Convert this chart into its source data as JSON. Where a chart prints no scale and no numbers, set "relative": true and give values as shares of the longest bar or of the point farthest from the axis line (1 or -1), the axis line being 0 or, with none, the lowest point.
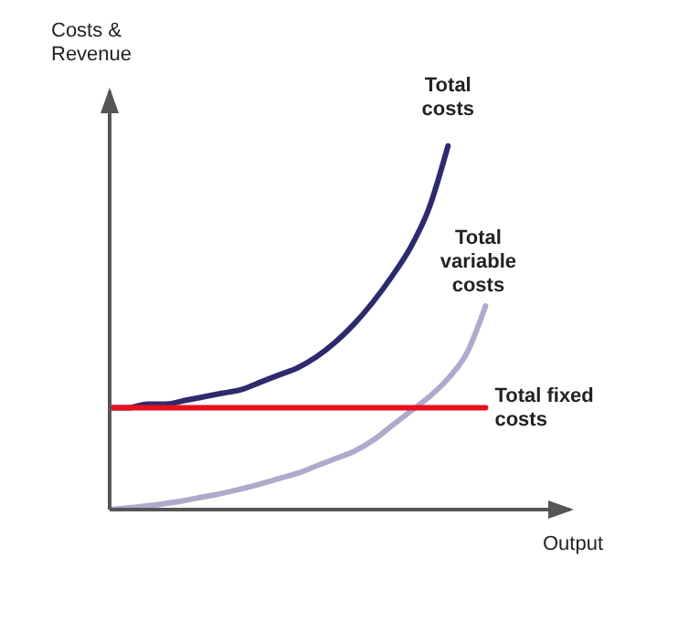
{
  "chart_data": {
    "type": "line",
    "relative": true,
    "xlabel": "Output",
    "ylabel": "Costs & Revenue",
    "marker": "none",
    "line_style": "solid",
    "categories": [
      null,
      null,
      null,
      null,
      null,
      null,
      null,
      null,
      null,
      null,
      null,
      null,
      null,
      null,
      null,
      null,
      null,
      null,
      null,
      null,
      null
    ],
    "series": [
      {
        "name": "Total costs",
        "color": "#2e2a6e",
        "values": [
          0.28,
          0.28,
          0.29,
          0.29,
          0.3,
          0.31,
          0.32,
          0.33,
          0.35,
          0.37,
          0.39,
          0.42,
          0.46,
          0.51,
          0.57,
          0.64,
          0.72,
          0.83,
          1,
          null,
          null
        ]
      },
      {
        "name": "Total variable costs",
        "color": "#b0a9cc",
        "values": [
          0,
          0.005,
          0.01,
          0.017,
          0.025,
          0.035,
          0.045,
          0.057,
          0.07,
          0.085,
          0.1,
          0.12,
          0.14,
          0.16,
          0.19,
          0.23,
          0.27,
          0.31,
          0.36,
          0.43,
          0.56
        ]
      },
      {
        "name": "Total fixed costs",
        "color": "#e8101e",
        "values": [
          0.28,
          0.28,
          0.28,
          0.28,
          0.28,
          0.28,
          0.28,
          0.28,
          0.28,
          0.28,
          0.28,
          0.28,
          0.28,
          0.28,
          0.28,
          0.28,
          0.28,
          0.28,
          0.28,
          0.28,
          0.28
        ]
      }
    ]
  }
}
